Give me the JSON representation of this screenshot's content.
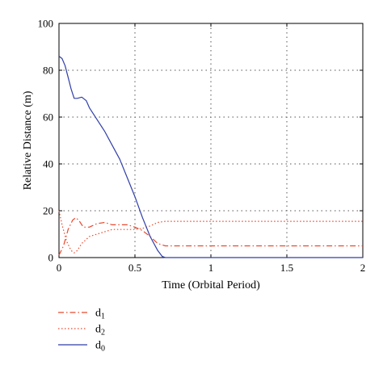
{
  "chart_data": {
    "type": "line",
    "xlabel": "Time (Orbital Period)",
    "ylabel": "Relative Distance (m)",
    "xlim": [
      0,
      2
    ],
    "ylim": [
      0,
      100
    ],
    "x_ticks": [
      "0",
      "0.5",
      "1",
      "1.5",
      "2"
    ],
    "y_ticks": [
      "0",
      "20",
      "40",
      "60",
      "80",
      "100"
    ],
    "grid": true,
    "legend_position": "bottom-left, below plot",
    "series": [
      {
        "name": "d1",
        "name_base": "d",
        "name_sub": "1",
        "color": "#e8492e",
        "style": "dash-dot",
        "points": [
          [
            0,
            1
          ],
          [
            0.03,
            5
          ],
          [
            0.06,
            12
          ],
          [
            0.09,
            16
          ],
          [
            0.11,
            17
          ],
          [
            0.13,
            16
          ],
          [
            0.16,
            13
          ],
          [
            0.2,
            13
          ],
          [
            0.25,
            14.5
          ],
          [
            0.3,
            15
          ],
          [
            0.35,
            14
          ],
          [
            0.4,
            14
          ],
          [
            0.45,
            14
          ],
          [
            0.5,
            13
          ],
          [
            0.55,
            11.5
          ],
          [
            0.6,
            9
          ],
          [
            0.65,
            6
          ],
          [
            0.7,
            5
          ],
          [
            0.8,
            5
          ],
          [
            1,
            5
          ],
          [
            1.5,
            5
          ],
          [
            2,
            5
          ]
        ]
      },
      {
        "name": "d2",
        "name_base": "d",
        "name_sub": "2",
        "color": "#e8492e",
        "style": "dotted",
        "points": [
          [
            0,
            20
          ],
          [
            0.02,
            14
          ],
          [
            0.05,
            7
          ],
          [
            0.08,
            3
          ],
          [
            0.1,
            2
          ],
          [
            0.12,
            3
          ],
          [
            0.15,
            6
          ],
          [
            0.2,
            9
          ],
          [
            0.25,
            10
          ],
          [
            0.3,
            11
          ],
          [
            0.35,
            12
          ],
          [
            0.4,
            12
          ],
          [
            0.45,
            12
          ],
          [
            0.5,
            12
          ],
          [
            0.55,
            12.5
          ],
          [
            0.6,
            13.5
          ],
          [
            0.65,
            15
          ],
          [
            0.7,
            15.5
          ],
          [
            0.8,
            15.5
          ],
          [
            1,
            15.5
          ],
          [
            1.5,
            15.5
          ],
          [
            2,
            15.5
          ]
        ]
      },
      {
        "name": "d0",
        "name_base": "d",
        "name_sub": "0",
        "color": "#2f3ea8",
        "style": "solid",
        "points": [
          [
            0,
            86
          ],
          [
            0.02,
            85
          ],
          [
            0.04,
            82
          ],
          [
            0.06,
            77
          ],
          [
            0.08,
            72
          ],
          [
            0.1,
            68
          ],
          [
            0.12,
            68
          ],
          [
            0.15,
            68.5
          ],
          [
            0.18,
            67
          ],
          [
            0.2,
            64
          ],
          [
            0.25,
            59
          ],
          [
            0.3,
            54
          ],
          [
            0.35,
            48
          ],
          [
            0.4,
            42
          ],
          [
            0.45,
            34
          ],
          [
            0.5,
            26
          ],
          [
            0.55,
            17
          ],
          [
            0.6,
            9
          ],
          [
            0.65,
            3
          ],
          [
            0.68,
            0.5
          ],
          [
            0.7,
            0
          ],
          [
            1,
            0
          ],
          [
            1.5,
            0
          ],
          [
            2,
            0
          ]
        ]
      }
    ]
  }
}
